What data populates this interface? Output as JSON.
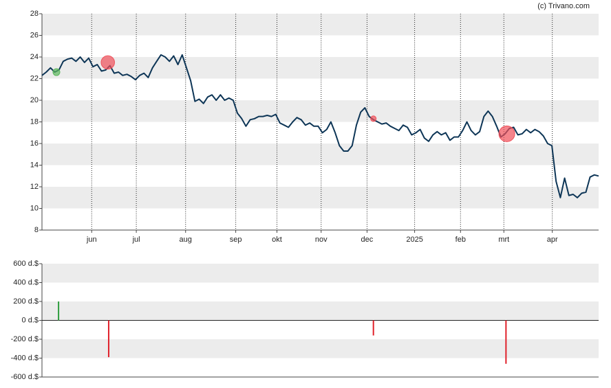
{
  "chart_data": [
    {
      "type": "line",
      "credit": "(c) Trivano.com",
      "color": "#0d3556",
      "values": [
        22.3,
        22.6,
        23.0,
        22.6,
        22.8,
        23.6,
        23.8,
        23.9,
        23.6,
        24.0,
        23.5,
        23.9,
        23.1,
        23.3,
        22.7,
        22.8,
        23.2,
        22.5,
        22.6,
        22.3,
        22.4,
        22.2,
        21.9,
        22.3,
        22.5,
        22.1,
        23.0,
        23.6,
        24.2,
        24.0,
        23.6,
        24.1,
        23.3,
        24.2,
        23.0,
        21.8,
        19.9,
        20.1,
        19.7,
        20.3,
        20.5,
        20.0,
        20.5,
        20.0,
        20.2,
        20.0,
        18.8,
        18.3,
        17.6,
        18.2,
        18.3,
        18.5,
        18.5,
        18.6,
        18.5,
        18.7,
        17.9,
        17.7,
        17.5,
        18.0,
        18.4,
        18.2,
        17.7,
        17.9,
        17.6,
        17.6,
        17.0,
        17.3,
        18.0,
        17.0,
        15.8,
        15.3,
        15.3,
        15.8,
        17.7,
        18.9,
        19.3,
        18.5,
        18.2,
        18.0,
        17.8,
        17.9,
        17.6,
        17.4,
        17.2,
        17.7,
        17.5,
        16.8,
        17.0,
        17.3,
        16.5,
        16.2,
        16.8,
        17.1,
        16.8,
        17.0,
        16.3,
        16.6,
        16.6,
        17.2,
        18.0,
        17.2,
        16.8,
        17.1,
        18.5,
        19.0,
        18.5,
        17.6,
        16.6,
        16.9,
        17.4,
        17.5,
        16.8,
        16.9,
        17.3,
        17.0,
        17.3,
        17.1,
        16.7,
        16.0,
        15.8,
        12.5,
        11.0,
        12.8,
        11.2,
        11.3,
        11.0,
        11.4,
        11.5,
        12.9,
        13.1,
        13.0
      ],
      "xlim": [
        0,
        131
      ],
      "xticks": [
        {
          "value": 11.7,
          "label": "jun"
        },
        {
          "value": 22.2,
          "label": "jul"
        },
        {
          "value": 33.8,
          "label": "aug"
        },
        {
          "value": 45.6,
          "label": "sep"
        },
        {
          "value": 55.3,
          "label": "okt"
        },
        {
          "value": 65.7,
          "label": "nov"
        },
        {
          "value": 76.5,
          "label": "dec"
        },
        {
          "value": 87.7,
          "label": "2025"
        },
        {
          "value": 98.5,
          "label": "feb"
        },
        {
          "value": 108.7,
          "label": "mrt"
        },
        {
          "value": 120.1,
          "label": "apr"
        }
      ],
      "ylim": [
        8,
        28
      ],
      "yticks": [
        8,
        10,
        12,
        14,
        16,
        18,
        20,
        22,
        24,
        26,
        28
      ],
      "grid": true,
      "markers": {
        "x": [
          3.4,
          15.5,
          78.0,
          109.4
        ],
        "y": [
          22.6,
          23.5,
          18.3,
          16.9
        ],
        "colors": [
          "#5cb85c",
          "#f0505a",
          "#f0505a",
          "#f0505a"
        ]
      }
    },
    {
      "type": "bar",
      "x": [
        3.9,
        15.7,
        78.0,
        109.2
      ],
      "values": [
        200,
        -390,
        -160,
        -460
      ],
      "colors": [
        "#2e9e3e",
        "#e0202a",
        "#e0202a",
        "#e0202a"
      ],
      "xlim": [
        0,
        131
      ],
      "ylim": [
        -600,
        600
      ],
      "yticks": [
        {
          "value": -600,
          "label": "-600 d.$"
        },
        {
          "value": -400,
          "label": "-400 d.$"
        },
        {
          "value": -200,
          "label": "-200 d.$"
        },
        {
          "value": 0,
          "label": "0 d.$"
        },
        {
          "value": 200,
          "label": "200 d.$"
        },
        {
          "value": 400,
          "label": "400 d.$"
        },
        {
          "value": 600,
          "label": "600 d.$"
        }
      ]
    }
  ]
}
